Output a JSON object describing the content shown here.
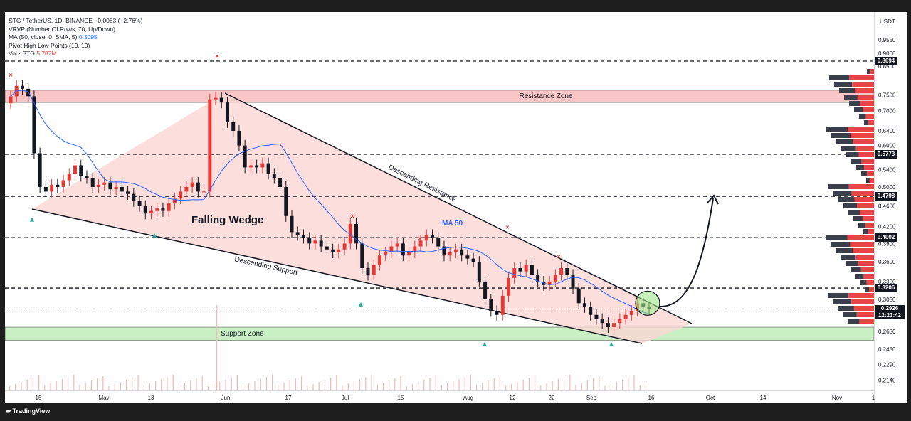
{
  "legend": {
    "symbol_line": "STG / TetherUS, 1D, BINANCE  −0.0083 (−2.76%)",
    "vrvp_line": "VRVP (Number Of Rows, 70, Up/Down)",
    "ma_line_prefix": "MA (50, close, 0, SMA, 5)",
    "ma_value": "0.3095",
    "pivot_line": "Pivot High Low Points (10, 10)",
    "vol_prefix": "Vol · STG",
    "vol_value": "5.787M"
  },
  "axis": {
    "unit": "USDT",
    "price_ticks": [
      "0.9550",
      "0.9000",
      "0.8500",
      "0.7500",
      "0.7000",
      "0.6400",
      "0.6000",
      "0.5400",
      "0.5000",
      "0.4600",
      "0.4200",
      "0.3900",
      "0.3600",
      "0.3300",
      "0.3050",
      "0.2650",
      "0.2450",
      "0.2290",
      "0.2140"
    ],
    "price_labels": [
      "0.8694",
      "0.5773",
      "0.4798",
      "0.4002",
      "0.3206"
    ],
    "current_price": "0.2926",
    "countdown": "12:23:42",
    "date_ticks": [
      "15",
      "May",
      "13",
      "Jun",
      "17",
      "Jul",
      "15",
      "Aug",
      "12",
      "22",
      "Sep",
      "16",
      "Oct",
      "14",
      "Nov",
      "1"
    ]
  },
  "annotations": {
    "resistance_zone": "Resistance Zone",
    "support_zone": "Support Zone",
    "descending_resistance": "Descending Resistance",
    "descending_support": "Descending Support",
    "pattern": "Falling Wedge",
    "ma_label": "MA 50"
  },
  "branding": {
    "logo": "TradingView"
  },
  "colors": {
    "up": "#e53935",
    "down": "#131722",
    "ma": "#2962ff",
    "resistance_zone": "#f8c6c6",
    "support_zone": "#c8f0c3",
    "wedge": "#fbd7d5"
  },
  "chart_data": {
    "type": "candlestick",
    "symbol": "STG / TetherUS",
    "timeframe": "1D",
    "exchange": "BINANCE",
    "change": -0.0083,
    "change_pct": -2.76,
    "horizontal_levels": [
      0.8694,
      0.5773,
      0.4798,
      0.4002,
      0.3206
    ],
    "resistance_zone": [
      0.725,
      0.765
    ],
    "support_zone": [
      0.255,
      0.27
    ],
    "ma50_last": 0.3095,
    "volume_last": "5.787M",
    "close_last": 0.2926,
    "pivot_highs": [
      0.8,
      0.87,
      0.43,
      0.39,
      0.41,
      0.36
    ],
    "pivot_lows": [
      0.45,
      0.42,
      0.31,
      0.26,
      0.26
    ],
    "candle_closes": [
      0.745,
      0.78,
      0.77,
      0.745,
      0.58,
      0.5,
      0.49,
      0.505,
      0.5,
      0.515,
      0.53,
      0.55,
      0.525,
      0.52,
      0.5,
      0.505,
      0.51,
      0.495,
      0.5,
      0.49,
      0.485,
      0.47,
      0.46,
      0.445,
      0.45,
      0.455,
      0.45,
      0.465,
      0.475,
      0.49,
      0.5,
      0.51,
      0.49,
      0.49,
      0.735,
      0.74,
      0.725,
      0.665,
      0.64,
      0.6,
      0.545,
      0.55,
      0.545,
      0.555,
      0.53,
      0.52,
      0.5,
      0.44,
      0.41,
      0.405,
      0.4,
      0.39,
      0.395,
      0.385,
      0.38,
      0.375,
      0.38,
      0.39,
      0.425,
      0.39,
      0.35,
      0.34,
      0.355,
      0.37,
      0.375,
      0.385,
      0.39,
      0.37,
      0.375,
      0.385,
      0.395,
      0.405,
      0.4,
      0.385,
      0.37,
      0.375,
      0.38,
      0.37,
      0.365,
      0.36,
      0.33,
      0.305,
      0.29,
      0.285,
      0.31,
      0.335,
      0.35,
      0.345,
      0.355,
      0.34,
      0.33,
      0.325,
      0.33,
      0.34,
      0.35,
      0.34,
      0.32,
      0.3,
      0.295,
      0.285,
      0.28,
      0.275,
      0.27,
      0.275,
      0.28,
      0.285,
      0.29,
      0.3,
      0.295,
      0.2926
    ]
  }
}
